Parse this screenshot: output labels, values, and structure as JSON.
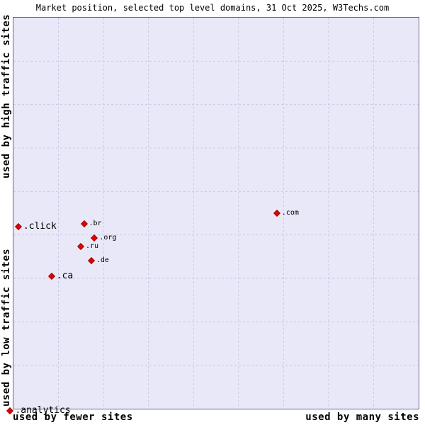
{
  "title": "Market position, selected top level domains, 31 Oct 2025, W3Techs.com",
  "colors": {
    "marker": "#e60000",
    "marker_border": "#a00000",
    "plot_bg": "#e8e8f8",
    "grid": "#c9c9e8",
    "border": "#666688"
  },
  "chart_data": {
    "type": "scatter",
    "title": "Market position, selected top level domains, 31 Oct 2025, W3Techs.com",
    "ylabel_top": "used by high traffic sites",
    "ylabel_bottom": "used by low traffic sites",
    "xlabel_left": "used by fewer sites",
    "xlabel_right": "used by many sites",
    "grid": "dashed",
    "grid_divisions": 9,
    "axis_note": "axes are qualitative; point positions are relative fractions of plot area (x: 0=fewer sites, 1=many sites; y: 0=high traffic, 1=low traffic)",
    "points": [
      {
        "label": ".click",
        "x": 0.012,
        "y": 0.534,
        "size": "large"
      },
      {
        "label": ".br",
        "x": 0.174,
        "y": 0.527,
        "size": "small"
      },
      {
        "label": ".org",
        "x": 0.2,
        "y": 0.563,
        "size": "small"
      },
      {
        "label": ".ru",
        "x": 0.166,
        "y": 0.585,
        "size": "small"
      },
      {
        "label": ".de",
        "x": 0.192,
        "y": 0.621,
        "size": "small"
      },
      {
        "label": ".ca",
        "x": 0.094,
        "y": 0.662,
        "size": "large"
      },
      {
        "label": ".com",
        "x": 0.65,
        "y": 0.5,
        "size": "small"
      },
      {
        "label": ".analytics",
        "x": -0.008,
        "y": 1.005,
        "size": "large"
      }
    ]
  }
}
